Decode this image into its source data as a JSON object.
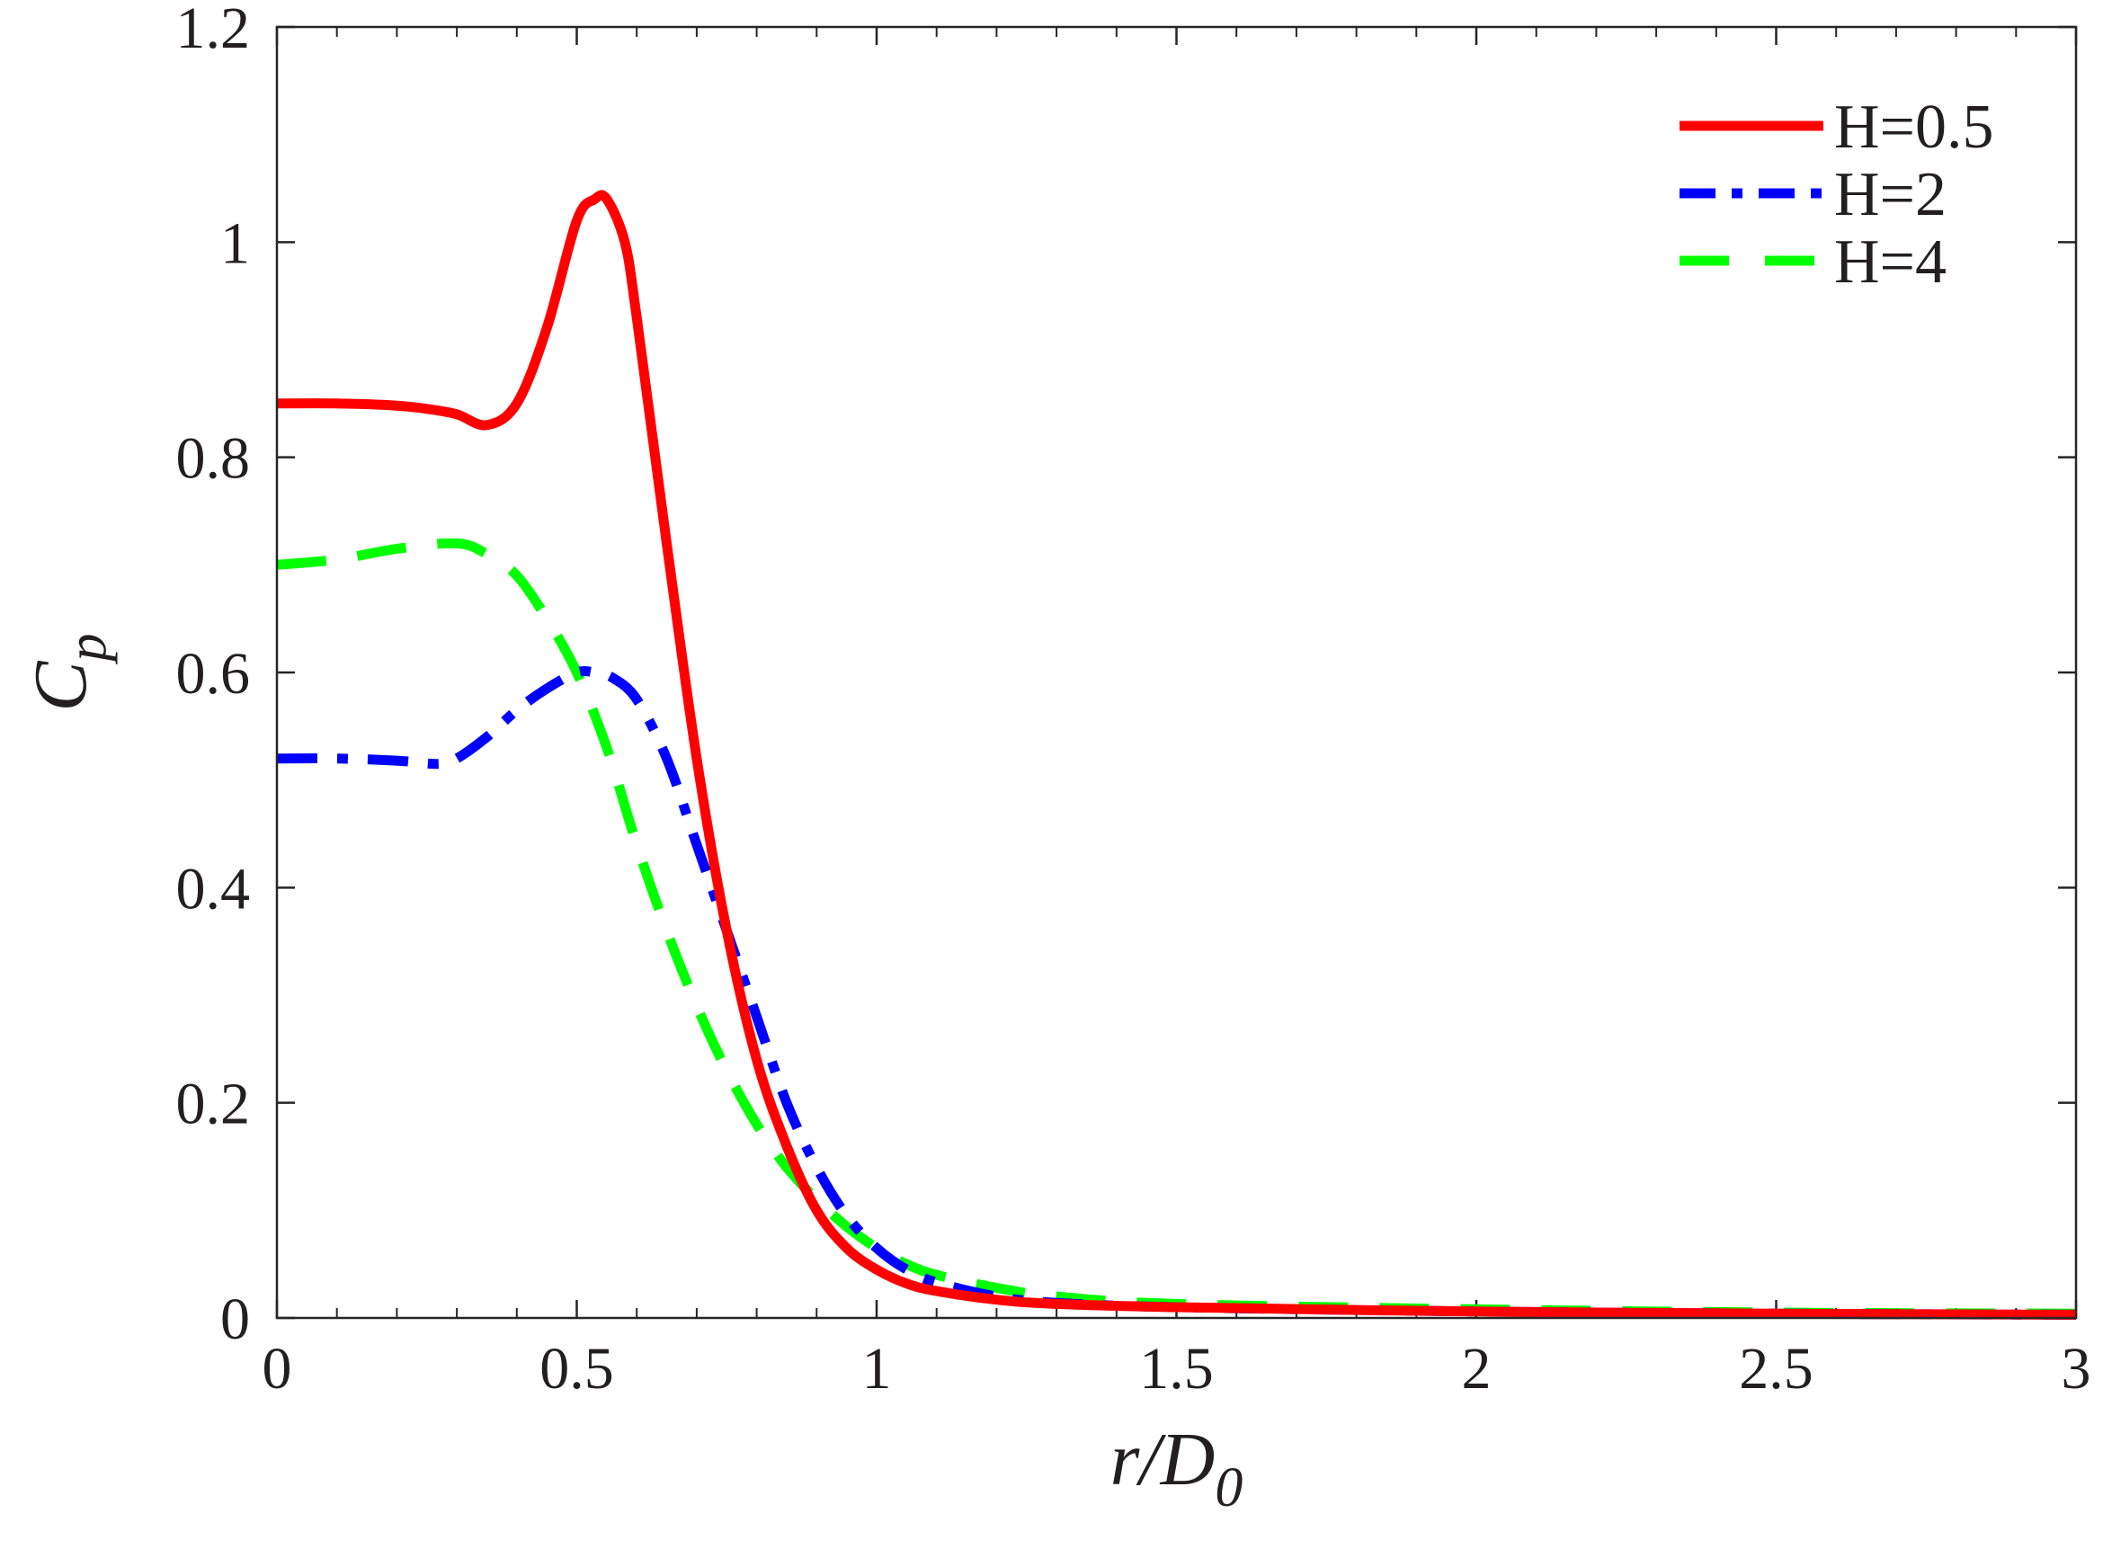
{
  "chart_data": {
    "type": "line",
    "xlabel": {
      "main": "r/D",
      "sub": "0"
    },
    "ylabel": {
      "main": "C",
      "sub": "p"
    },
    "xlim": [
      0,
      3
    ],
    "ylim": [
      0,
      1.2
    ],
    "xticks": [
      0,
      0.5,
      1,
      1.5,
      2,
      2.5,
      3
    ],
    "xtick_labels": [
      "0",
      "0.5",
      "1",
      "1.5",
      "2",
      "2.5",
      "3"
    ],
    "yticks": [
      0,
      0.2,
      0.4,
      0.6,
      0.8,
      1,
      1.2
    ],
    "ytick_labels": [
      "0",
      "0.2",
      "0.4",
      "0.6",
      "0.8",
      "1",
      "1.2"
    ],
    "grid": false,
    "legend_position": "top-right",
    "series": [
      {
        "name": "H=0.5",
        "color": "#ff0000",
        "style": "solid",
        "x": [
          0,
          0.1,
          0.2,
          0.25,
          0.3,
          0.35,
          0.4,
          0.45,
          0.5,
          0.53,
          0.55,
          0.58,
          0.6,
          0.65,
          0.7,
          0.75,
          0.8,
          0.85,
          0.9,
          0.95,
          1.0,
          1.05,
          1.1,
          1.2,
          1.3,
          1.5,
          2.0,
          2.5,
          3.0
        ],
        "y": [
          0.85,
          0.85,
          0.848,
          0.845,
          0.84,
          0.83,
          0.85,
          0.92,
          1.02,
          1.04,
          1.04,
          1.0,
          0.93,
          0.72,
          0.52,
          0.36,
          0.24,
          0.16,
          0.1,
          0.065,
          0.045,
          0.032,
          0.025,
          0.017,
          0.013,
          0.01,
          0.006,
          0.004,
          0.003
        ]
      },
      {
        "name": "H=2",
        "color": "#0000ff",
        "style": "dashdot",
        "x": [
          0,
          0.1,
          0.2,
          0.27,
          0.3,
          0.35,
          0.4,
          0.45,
          0.5,
          0.53,
          0.56,
          0.6,
          0.65,
          0.7,
          0.75,
          0.8,
          0.85,
          0.9,
          0.95,
          1.0,
          1.05,
          1.1,
          1.2,
          1.3,
          1.5,
          2.0,
          2.5,
          3.0
        ],
        "y": [
          0.52,
          0.52,
          0.518,
          0.515,
          0.52,
          0.54,
          0.565,
          0.585,
          0.6,
          0.6,
          0.595,
          0.575,
          0.52,
          0.44,
          0.36,
          0.28,
          0.2,
          0.14,
          0.095,
          0.065,
          0.045,
          0.033,
          0.02,
          0.014,
          0.01,
          0.006,
          0.004,
          0.003
        ]
      },
      {
        "name": "H=4",
        "color": "#00ff00",
        "style": "dashed",
        "x": [
          0,
          0.1,
          0.2,
          0.3,
          0.35,
          0.4,
          0.45,
          0.5,
          0.55,
          0.6,
          0.65,
          0.7,
          0.75,
          0.8,
          0.85,
          0.9,
          0.95,
          1.0,
          1.05,
          1.1,
          1.2,
          1.3,
          1.5,
          2.0,
          2.5,
          3.0
        ],
        "y": [
          0.7,
          0.705,
          0.715,
          0.72,
          0.71,
          0.69,
          0.65,
          0.6,
          0.53,
          0.44,
          0.36,
          0.29,
          0.23,
          0.18,
          0.14,
          0.11,
          0.085,
          0.065,
          0.05,
          0.04,
          0.028,
          0.02,
          0.013,
          0.008,
          0.005,
          0.004
        ]
      }
    ]
  }
}
